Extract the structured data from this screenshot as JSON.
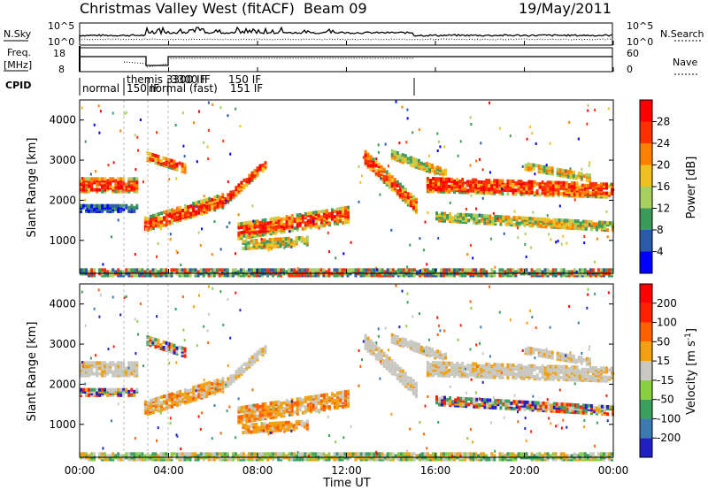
{
  "header": {
    "title": "Christmas Valley West (fitACF)",
    "beam": "Beam 09",
    "date": "19/May/2011"
  },
  "top_panels": {
    "nsky_label": "N.Sky",
    "nsky_ticks": [
      "10^5",
      "10^0"
    ],
    "nsearch_label": "N.Search",
    "nsearch_ticks": [
      "10^5",
      "10^0"
    ],
    "freq_label_1": "Freq.",
    "freq_label_2": "[MHz]",
    "freq_ticks": [
      "18",
      "8"
    ],
    "nave_label": "Nave",
    "nave_ticks": [
      "60",
      "0"
    ],
    "cpid_label": "CPID",
    "cpid_segments": [
      "normal",
      "themis 3300 IF",
      "150 IF",
      "normal (fast)",
      "151 IF",
      "3300 IF",
      "150 IF"
    ]
  },
  "chart_data": [
    {
      "type": "heatmap",
      "name": "power-panel",
      "ylabel": "Slant Range [km]",
      "xlabel": "",
      "x_range_hours": [
        0,
        24
      ],
      "ylim": [
        180,
        4500
      ],
      "yticks": [
        "1000",
        "2000",
        "3000",
        "4000"
      ],
      "colorbar_label": "Power [dB]",
      "colorbar_ticks": [
        "4",
        "8",
        "12",
        "16",
        "20",
        "24",
        "28"
      ],
      "colorbar_colors": [
        "#0000ff",
        "#2a5aa8",
        "#3c9a5a",
        "#a8d060",
        "#f0c020",
        "#ff8000",
        "#ff3000",
        "#ff0000"
      ]
    },
    {
      "type": "heatmap",
      "name": "velocity-panel",
      "ylabel": "Slant Range [km]",
      "xlabel": "Time UT",
      "x_range_hours": [
        0,
        24
      ],
      "ylim": [
        180,
        4500
      ],
      "yticks": [
        "1000",
        "2000",
        "3000",
        "4000"
      ],
      "xticks": [
        "00:00",
        "04:00",
        "08:00",
        "12:00",
        "16:00",
        "20:00",
        "00:00"
      ],
      "colorbar_label": "Velocity [m s",
      "colorbar_label_sup": "-1",
      "colorbar_label_end": "]",
      "colorbar_ticks": [
        "200",
        "100",
        "50",
        "15",
        "-15",
        "-50",
        "-100",
        "-200"
      ],
      "colorbar_colors": [
        "#2020c0",
        "#3c7ab0",
        "#3aa060",
        "#88d040",
        "#c8c8c0",
        "#f0a010",
        "#ff6000",
        "#ff2000",
        "#ff0000"
      ]
    }
  ]
}
